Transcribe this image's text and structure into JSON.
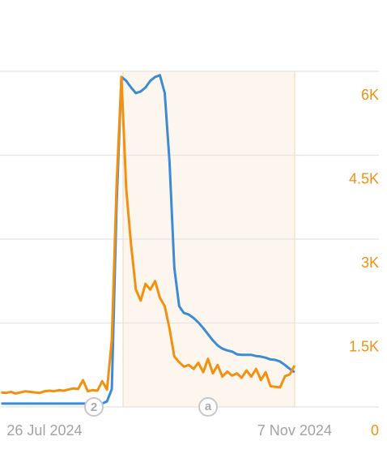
{
  "chart_data": {
    "type": "line",
    "categories": [
      null,
      null,
      null,
      null,
      null,
      null,
      null,
      null,
      null,
      "26 Jul 2024",
      null,
      null,
      null,
      null,
      null,
      null,
      null,
      null,
      null,
      null,
      null,
      null,
      null,
      null,
      null,
      null,
      null,
      null,
      null,
      null,
      null,
      null,
      null,
      null,
      null,
      null,
      null,
      null,
      null,
      null,
      null,
      null,
      null,
      null,
      null,
      null,
      null,
      null,
      null,
      null,
      null,
      null,
      null,
      null,
      null,
      null,
      null,
      null,
      null,
      null,
      null,
      "7 Nov 2024"
    ],
    "series": [
      {
        "color": "#3d8bd4",
        "values": [
          60,
          60,
          60,
          60,
          60,
          60,
          60,
          60,
          60,
          60,
          60,
          60,
          60,
          60,
          60,
          60,
          60,
          60,
          60,
          60,
          60,
          60,
          100,
          320,
          3650,
          5900,
          5830,
          5710,
          5610,
          5640,
          5710,
          5830,
          5900,
          5930,
          5610,
          4380,
          2490,
          1800,
          1680,
          1650,
          1590,
          1510,
          1410,
          1300,
          1190,
          1100,
          1040,
          1010,
          990,
          940,
          930,
          930,
          930,
          910,
          900,
          880,
          850,
          840,
          810,
          750,
          680,
          620
        ]
      },
      {
        "color": "#f29111",
        "values": [
          260,
          250,
          270,
          240,
          260,
          280,
          270,
          260,
          250,
          280,
          290,
          280,
          300,
          290,
          310,
          330,
          320,
          480,
          280,
          300,
          290,
          460,
          310,
          1200,
          4000,
          5900,
          3900,
          2900,
          2100,
          1900,
          2200,
          2100,
          2250,
          1950,
          1800,
          1400,
          900,
          800,
          720,
          750,
          680,
          790,
          620,
          860,
          600,
          750,
          540,
          630,
          560,
          600,
          520,
          650,
          540,
          680,
          480,
          620,
          370,
          360,
          350,
          550,
          580,
          740
        ]
      }
    ],
    "ylim": [
      0,
      6000
    ],
    "yticks": [
      0,
      {
        "value": 1500,
        "label": "1.5K"
      },
      {
        "value": 3000,
        "label": "3K"
      },
      {
        "value": 4500,
        "label": "4.5K"
      },
      {
        "value": 6000,
        "label": "6K"
      }
    ],
    "tick_color": "#f29111",
    "grid": true,
    "annotations": [
      "2",
      "a"
    ]
  }
}
